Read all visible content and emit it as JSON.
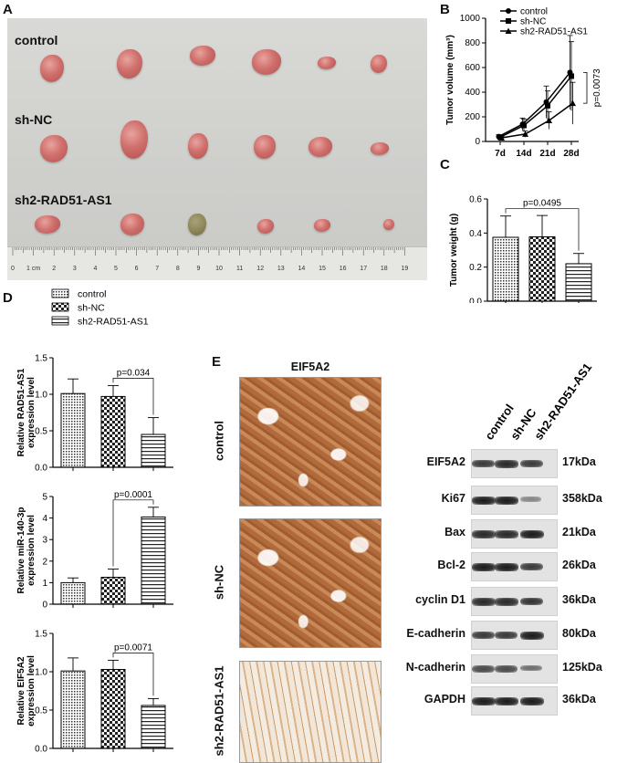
{
  "panels": {
    "a": "A",
    "b": "B",
    "c": "C",
    "d": "D",
    "e": "E"
  },
  "panel_a": {
    "groups": [
      "control",
      "sh-NC",
      "sh2-RAD51-AS1"
    ],
    "ruler_ticks": [
      "0",
      "1 cm",
      "2",
      "3",
      "4",
      "5",
      "6",
      "7",
      "8",
      "9",
      "10",
      "11",
      "12",
      "13",
      "14",
      "15",
      "16",
      "17",
      "18",
      "19"
    ]
  },
  "panel_e": {
    "ihc_title": "EIF5A2",
    "ihc_rows": [
      "control",
      "sh-NC",
      "sh2-RAD51-AS1"
    ],
    "blot_columns": [
      "control",
      "sh-NC",
      "sh2-RAD51-AS1"
    ],
    "blots": [
      {
        "name": "EIF5A2",
        "kda": "17kDa",
        "intensity": [
          0.8,
          0.9,
          0.8
        ]
      },
      {
        "name": "Ki67",
        "kda": "358kDa",
        "intensity": [
          1.0,
          1.0,
          0.3
        ]
      },
      {
        "name": "Bax",
        "kda": "21kDa",
        "intensity": [
          0.9,
          0.9,
          1.0
        ]
      },
      {
        "name": "Bcl-2",
        "kda": "26kDa",
        "intensity": [
          1.0,
          1.0,
          0.8
        ]
      },
      {
        "name": "cyclin D1",
        "kda": "36kDa",
        "intensity": [
          0.9,
          0.9,
          0.85
        ]
      },
      {
        "name": "E-cadherin",
        "kda": "80kDa",
        "intensity": [
          0.8,
          0.8,
          1.0
        ]
      },
      {
        "name": "N-cadherin",
        "kda": "125kDa",
        "intensity": [
          0.7,
          0.7,
          0.45
        ]
      },
      {
        "name": "GAPDH",
        "kda": "36kDa",
        "intensity": [
          1.0,
          1.0,
          1.0
        ]
      }
    ]
  },
  "chart_data": [
    {
      "type": "line",
      "id": "B",
      "ylabel": "Tumor volume (mm³)",
      "categories": [
        "7d",
        "14d",
        "21d",
        "28d"
      ],
      "ylim": [
        0,
        1000
      ],
      "yticks": [
        0,
        200,
        400,
        600,
        800,
        1000
      ],
      "series": [
        {
          "name": "control",
          "values": [
            40,
            140,
            320,
            560
          ],
          "errors": [
            15,
            50,
            130,
            300
          ]
        },
        {
          "name": "sh-NC",
          "values": [
            35,
            130,
            290,
            530
          ],
          "errors": [
            15,
            50,
            120,
            280
          ]
        },
        {
          "name": "sh2-RAD51-AS1",
          "values": [
            30,
            60,
            170,
            310
          ],
          "errors": [
            10,
            25,
            70,
            170
          ]
        }
      ],
      "annotation": "p=0.0073"
    },
    {
      "type": "bar",
      "id": "C",
      "ylabel": "Tumor weight (g)",
      "categories": [
        "control",
        "sh-NC",
        "sh2-RAD51-AS1"
      ],
      "values": [
        0.375,
        0.378,
        0.22
      ],
      "errors": [
        0.125,
        0.125,
        0.06
      ],
      "ylim": [
        0,
        0.6
      ],
      "yticks": [
        "0.0",
        "0.2",
        "0.4",
        "0.6"
      ],
      "annotation": "p=0.0495"
    },
    {
      "type": "bar",
      "id": "D1",
      "ylabel": [
        "Relative RAD51-AS1",
        "expression level"
      ],
      "categories": [
        "control",
        "sh-NC",
        "sh2-RAD51-AS1"
      ],
      "values": [
        1.01,
        0.97,
        0.45
      ],
      "errors": [
        0.2,
        0.15,
        0.23
      ],
      "ylim": [
        0,
        1.5
      ],
      "yticks": [
        "0.0",
        "0.5",
        "1.0",
        "1.5"
      ],
      "annotation": "p=0.034"
    },
    {
      "type": "bar",
      "id": "D2",
      "ylabel": [
        "Relative miR-140-3p",
        "expression level"
      ],
      "categories": [
        "control",
        "sh-NC",
        "sh2-RAD51-AS1"
      ],
      "values": [
        1.0,
        1.25,
        4.05
      ],
      "errors": [
        0.22,
        0.38,
        0.45
      ],
      "ylim": [
        0,
        5
      ],
      "yticks": [
        "0",
        "1",
        "2",
        "3",
        "4",
        "5"
      ],
      "annotation": "p=0.0001"
    },
    {
      "type": "bar",
      "id": "D3",
      "ylabel": [
        "Relative EIF5A2",
        "expression level"
      ],
      "categories": [
        "control",
        "sh-NC",
        "sh2-RAD51-AS1"
      ],
      "values": [
        1.01,
        1.03,
        0.56
      ],
      "errors": [
        0.17,
        0.12,
        0.09
      ],
      "ylim": [
        0,
        1.5
      ],
      "yticks": [
        "0.0",
        "0.5",
        "1.0",
        "1.5"
      ],
      "annotation": "p=0.0071"
    }
  ],
  "legend_d": [
    "control",
    "sh-NC",
    "sh2-RAD51-AS1"
  ]
}
